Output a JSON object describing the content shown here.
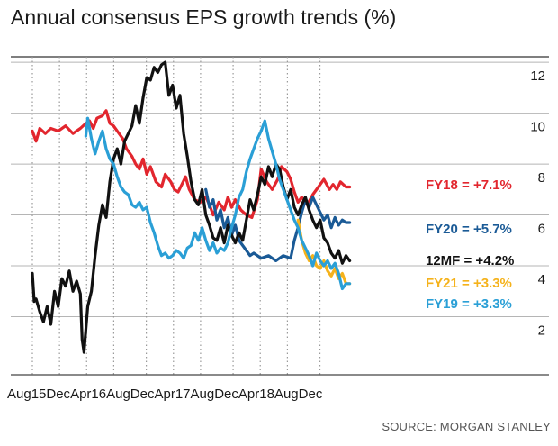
{
  "title": "Annual consensus EPS growth trends (%)",
  "source": "SOURCE: MORGAN STANLEY",
  "chart_data": {
    "type": "line",
    "title": "Annual consensus EPS growth trends (%)",
    "xlabel": "",
    "ylabel": "",
    "x_range": [
      0,
      1
    ],
    "ylim": [
      0,
      12.5
    ],
    "y_ticks": [
      2,
      4,
      6,
      8,
      10,
      12
    ],
    "x_ticks": [
      {
        "label": "Aug15",
        "x": 0.0
      },
      {
        "label": "Dec",
        "x": 0.0735
      },
      {
        "label": "Apr16",
        "x": 0.147
      },
      {
        "label": "Aug",
        "x": 0.2205
      },
      {
        "label": "Dec",
        "x": 0.3088
      },
      {
        "label": "Apr17",
        "x": 0.3824
      },
      {
        "label": "Aug",
        "x": 0.4559
      },
      {
        "label": "Dec",
        "x": 0.5441
      },
      {
        "label": "Apr18",
        "x": 0.6176
      },
      {
        "label": "Aug",
        "x": 0.6912
      },
      {
        "label": "Dec",
        "x": 0.7794
      }
    ],
    "grid": "vertical dotted at month marks, horizontal at tick values",
    "series": [
      {
        "name": "FY18",
        "label": "FY18 = +7.1%",
        "color": "#e2262e",
        "x": [
          0.0,
          0.01,
          0.02,
          0.035,
          0.05,
          0.07,
          0.09,
          0.11,
          0.13,
          0.145,
          0.155,
          0.165,
          0.175,
          0.19,
          0.2,
          0.21,
          0.22,
          0.23,
          0.245,
          0.255,
          0.27,
          0.28,
          0.29,
          0.3,
          0.31,
          0.32,
          0.335,
          0.35,
          0.36,
          0.375,
          0.385,
          0.395,
          0.405,
          0.415,
          0.425,
          0.44,
          0.455,
          0.47,
          0.48,
          0.49,
          0.505,
          0.52,
          0.53,
          0.54,
          0.55,
          0.565,
          0.58,
          0.595,
          0.61,
          0.62,
          0.635,
          0.65,
          0.665,
          0.675,
          0.69,
          0.7,
          0.71,
          0.72,
          0.73,
          0.745,
          0.76,
          0.775,
          0.79,
          0.805,
          0.815,
          0.825,
          0.835,
          0.85,
          0.86
        ],
        "y": [
          9.3,
          8.9,
          9.4,
          9.2,
          9.4,
          9.3,
          9.5,
          9.2,
          9.4,
          9.6,
          9.7,
          9.4,
          9.8,
          9.9,
          10.1,
          9.6,
          9.5,
          9.3,
          9.0,
          8.6,
          8.3,
          8.0,
          7.8,
          8.2,
          7.6,
          7.9,
          7.3,
          7.1,
          7.6,
          7.3,
          7.0,
          6.9,
          7.2,
          7.5,
          7.0,
          6.6,
          6.5,
          6.7,
          6.4,
          6.0,
          6.5,
          6.2,
          6.7,
          6.3,
          6.6,
          6.2,
          6.0,
          5.9,
          6.6,
          7.8,
          7.3,
          7.0,
          7.4,
          7.9,
          7.7,
          7.4,
          6.9,
          6.5,
          6.7,
          6.4,
          6.8,
          7.1,
          7.4,
          7.0,
          7.2,
          7.0,
          7.3,
          7.1,
          7.1
        ]
      },
      {
        "name": "FY20",
        "label": "FY20 = +5.7%",
        "color": "#1a5a96",
        "x": [
          0.47,
          0.48,
          0.49,
          0.5,
          0.51,
          0.52,
          0.53,
          0.54,
          0.55,
          0.56,
          0.57,
          0.58,
          0.59,
          0.6,
          0.62,
          0.64,
          0.66,
          0.68,
          0.7,
          0.71,
          0.72,
          0.73,
          0.74,
          0.75,
          0.76,
          0.77,
          0.78,
          0.79,
          0.8,
          0.81,
          0.82,
          0.83,
          0.84,
          0.85,
          0.86
        ],
        "y": [
          7.0,
          6.3,
          6.6,
          5.8,
          6.2,
          5.5,
          5.9,
          5.2,
          5.6,
          5.0,
          4.8,
          4.6,
          4.4,
          4.5,
          4.3,
          4.4,
          4.2,
          4.4,
          4.3,
          5.0,
          5.5,
          6.1,
          6.6,
          6.3,
          6.7,
          6.4,
          6.1,
          5.8,
          6.0,
          5.5,
          5.9,
          5.6,
          5.8,
          5.7,
          5.7
        ]
      },
      {
        "name": "12MF",
        "label": "12MF = +4.2%",
        "color": "#111111",
        "x": [
          0.0,
          0.005,
          0.01,
          0.02,
          0.03,
          0.04,
          0.05,
          0.06,
          0.07,
          0.08,
          0.09,
          0.1,
          0.11,
          0.12,
          0.13,
          0.135,
          0.14,
          0.15,
          0.16,
          0.17,
          0.18,
          0.19,
          0.2,
          0.21,
          0.22,
          0.23,
          0.24,
          0.25,
          0.26,
          0.27,
          0.28,
          0.29,
          0.3,
          0.31,
          0.32,
          0.33,
          0.34,
          0.35,
          0.36,
          0.37,
          0.38,
          0.39,
          0.4,
          0.41,
          0.42,
          0.43,
          0.44,
          0.45,
          0.46,
          0.47,
          0.48,
          0.49,
          0.5,
          0.51,
          0.52,
          0.53,
          0.54,
          0.55,
          0.56,
          0.57,
          0.58,
          0.59,
          0.6,
          0.61,
          0.62,
          0.63,
          0.64,
          0.65,
          0.66,
          0.67,
          0.68,
          0.69,
          0.7,
          0.71,
          0.72,
          0.73,
          0.74,
          0.75,
          0.76,
          0.77,
          0.78,
          0.79,
          0.8,
          0.81,
          0.82,
          0.83,
          0.84,
          0.85,
          0.86
        ],
        "y": [
          3.7,
          2.6,
          2.7,
          2.2,
          1.8,
          2.4,
          1.7,
          3.0,
          2.4,
          3.5,
          3.2,
          3.8,
          3.0,
          3.4,
          2.9,
          1.1,
          0.6,
          2.4,
          3.0,
          4.4,
          5.6,
          6.4,
          5.9,
          7.3,
          8.2,
          8.6,
          8.0,
          8.9,
          9.2,
          9.5,
          10.3,
          9.6,
          10.6,
          11.4,
          11.3,
          11.8,
          11.6,
          11.9,
          12.0,
          10.7,
          11.1,
          10.2,
          10.7,
          9.2,
          8.3,
          7.3,
          6.6,
          6.4,
          7.0,
          6.0,
          5.6,
          5.1,
          5.0,
          5.5,
          4.9,
          5.6,
          5.2,
          4.9,
          5.3,
          5.0,
          5.8,
          6.6,
          6.2,
          6.8,
          7.5,
          7.2,
          7.9,
          7.5,
          8.0,
          7.8,
          7.1,
          6.6,
          7.0,
          6.3,
          6.0,
          6.4,
          6.7,
          6.2,
          5.8,
          5.5,
          5.8,
          5.1,
          4.9,
          4.5,
          4.3,
          4.6,
          4.1,
          4.4,
          4.2
        ]
      },
      {
        "name": "FY21",
        "label": "FY21 = +3.3%",
        "color": "#f5b21b",
        "x": [
          0.72,
          0.73,
          0.74,
          0.75,
          0.76,
          0.77,
          0.78,
          0.79,
          0.8,
          0.81,
          0.82,
          0.83,
          0.84,
          0.85,
          0.86
        ],
        "y": [
          5.8,
          5.0,
          4.5,
          4.2,
          4.4,
          4.0,
          3.9,
          4.2,
          3.8,
          3.6,
          3.9,
          3.5,
          3.7,
          3.3,
          3.3
        ]
      },
      {
        "name": "FY19",
        "label": "FY19 = +3.3%",
        "color": "#2a9fd6",
        "x": [
          0.145,
          0.15,
          0.16,
          0.17,
          0.18,
          0.19,
          0.2,
          0.21,
          0.22,
          0.23,
          0.24,
          0.25,
          0.26,
          0.27,
          0.28,
          0.29,
          0.3,
          0.31,
          0.32,
          0.33,
          0.34,
          0.35,
          0.36,
          0.37,
          0.38,
          0.39,
          0.4,
          0.41,
          0.42,
          0.43,
          0.44,
          0.45,
          0.46,
          0.47,
          0.48,
          0.49,
          0.5,
          0.51,
          0.52,
          0.53,
          0.54,
          0.55,
          0.56,
          0.57,
          0.58,
          0.59,
          0.6,
          0.61,
          0.62,
          0.63,
          0.64,
          0.65,
          0.66,
          0.67,
          0.68,
          0.69,
          0.7,
          0.71,
          0.72,
          0.73,
          0.74,
          0.75,
          0.76,
          0.77,
          0.78,
          0.79,
          0.8,
          0.81,
          0.82,
          0.83,
          0.84,
          0.85,
          0.86
        ],
        "y": [
          9.1,
          9.8,
          9.0,
          8.4,
          8.9,
          9.3,
          8.6,
          8.2,
          8.0,
          7.5,
          7.1,
          6.9,
          6.8,
          6.4,
          6.3,
          6.5,
          6.2,
          6.3,
          5.7,
          5.3,
          4.8,
          4.4,
          4.5,
          4.3,
          4.4,
          4.6,
          4.5,
          4.3,
          4.7,
          4.8,
          5.3,
          5.0,
          5.5,
          5.0,
          4.6,
          4.9,
          4.5,
          4.7,
          4.6,
          4.9,
          5.5,
          6.0,
          6.7,
          7.0,
          7.7,
          8.2,
          8.6,
          9.0,
          9.3,
          9.7,
          9.0,
          8.5,
          8.0,
          7.4,
          7.0,
          6.6,
          6.2,
          5.8,
          5.5,
          5.0,
          4.7,
          4.4,
          4.0,
          4.5,
          4.2,
          4.0,
          4.2,
          3.9,
          4.1,
          3.7,
          3.1,
          3.3,
          3.3
        ]
      }
    ]
  }
}
